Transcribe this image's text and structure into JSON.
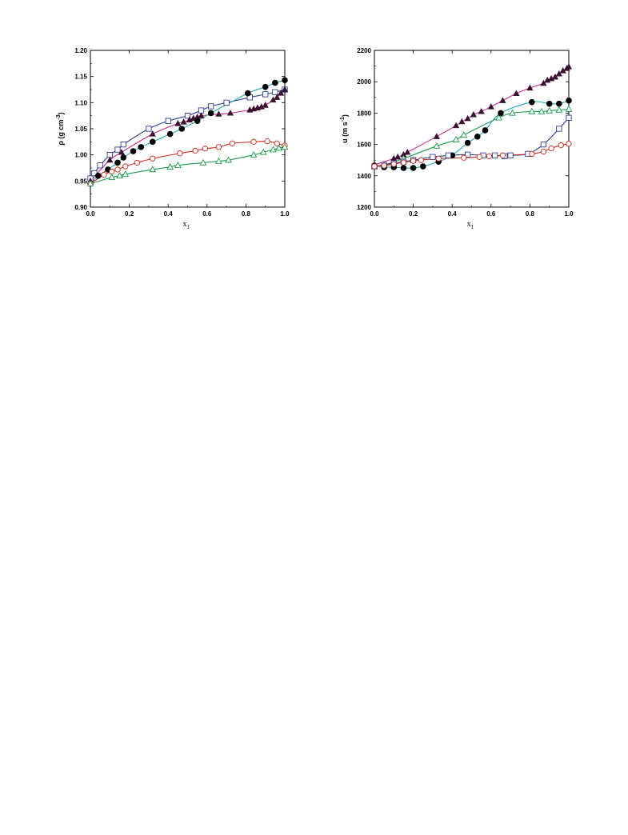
{
  "chart_data": [
    {
      "type": "scatter",
      "title": "",
      "xlabel": "x",
      "xlabel_sub": "1",
      "ylabel": "ρ (g cm",
      "ylabel_sup": "-3",
      "ylabel_end": ")",
      "xlim": [
        0.0,
        1.0
      ],
      "ylim": [
        0.9,
        1.2
      ],
      "xticks": [
        "0.0",
        "0.2",
        "0.4",
        "0.6",
        "0.8",
        "1.0"
      ],
      "yticks": [
        "0.90",
        "0.95",
        "1.00",
        "1.05",
        "1.10",
        "1.15",
        "1.20"
      ],
      "grid": false,
      "series": [
        {
          "marker": "open-square",
          "color": "#2f3f8f",
          "line_color": "#2f3f8f",
          "x": [
            0.0,
            0.02,
            0.05,
            0.1,
            0.14,
            0.17,
            0.3,
            0.4,
            0.5,
            0.57,
            0.62,
            0.7,
            0.82,
            0.9,
            0.95,
            1.0
          ],
          "y": [
            0.955,
            0.965,
            0.98,
            1.0,
            1.01,
            1.02,
            1.05,
            1.065,
            1.075,
            1.085,
            1.093,
            1.1,
            1.11,
            1.116,
            1.12,
            1.125
          ]
        },
        {
          "marker": "filled-triangle",
          "color": "#3a1030",
          "line_color": "#cc2a8a",
          "x": [
            0.0,
            0.1,
            0.16,
            0.32,
            0.45,
            0.48,
            0.51,
            0.53,
            0.55,
            0.57,
            0.66,
            0.72,
            0.82,
            0.84,
            0.86,
            0.88,
            0.9,
            0.94,
            0.96,
            0.98,
            1.0
          ],
          "y": [
            0.95,
            0.99,
            1.005,
            1.04,
            1.06,
            1.063,
            1.067,
            1.07,
            1.072,
            1.075,
            1.078,
            1.08,
            1.086,
            1.088,
            1.09,
            1.092,
            1.095,
            1.105,
            1.11,
            1.118,
            1.125
          ]
        },
        {
          "marker": "filled-circle",
          "color": "#000000",
          "line_color": "#22a8b5",
          "x": [
            0.0,
            0.04,
            0.09,
            0.14,
            0.17,
            0.22,
            0.26,
            0.32,
            0.41,
            0.47,
            0.55,
            0.62,
            0.81,
            0.9,
            0.95,
            1.0
          ],
          "y": [
            0.945,
            0.96,
            0.972,
            0.985,
            0.995,
            1.007,
            1.015,
            1.025,
            1.04,
            1.05,
            1.065,
            1.08,
            1.118,
            1.13,
            1.138,
            1.143
          ]
        },
        {
          "marker": "open-circle",
          "color": "#cc2a1a",
          "line_color": "#cc2a1a",
          "x": [
            0.0,
            0.07,
            0.11,
            0.14,
            0.18,
            0.24,
            0.32,
            0.46,
            0.54,
            0.59,
            0.66,
            0.73,
            0.84,
            0.91,
            0.96,
            1.0
          ],
          "y": [
            0.945,
            0.962,
            0.968,
            0.972,
            0.978,
            0.985,
            0.993,
            1.003,
            1.008,
            1.012,
            1.015,
            1.022,
            1.025,
            1.026,
            1.022,
            1.018
          ]
        },
        {
          "marker": "open-triangle",
          "color": "#1e9a4a",
          "line_color": "#1e9a4a",
          "x": [
            0.0,
            0.11,
            0.15,
            0.18,
            0.32,
            0.41,
            0.45,
            0.58,
            0.66,
            0.71,
            0.84,
            0.89,
            0.94,
            0.97,
            1.0
          ],
          "y": [
            0.945,
            0.957,
            0.96,
            0.963,
            0.972,
            0.977,
            0.98,
            0.985,
            0.988,
            0.99,
            1.0,
            1.005,
            1.01,
            1.013,
            1.015
          ]
        }
      ]
    },
    {
      "type": "scatter",
      "title": "",
      "xlabel": "x",
      "xlabel_sub": "1",
      "ylabel": "u (m s",
      "ylabel_sup": "-1",
      "ylabel_end": ")",
      "xlim": [
        0.0,
        1.0
      ],
      "ylim": [
        1200,
        2200
      ],
      "xticks": [
        "0.0",
        "0.2",
        "0.4",
        "0.6",
        "0.8",
        "1.0"
      ],
      "yticks": [
        "1200",
        "1400",
        "1600",
        "1800",
        "2000",
        "2200"
      ],
      "grid": false,
      "series": [
        {
          "marker": "filled-triangle",
          "color": "#3a1030",
          "line_color": "#cc2a8a",
          "x": [
            0.0,
            0.1,
            0.12,
            0.15,
            0.17,
            0.32,
            0.42,
            0.45,
            0.48,
            0.51,
            0.55,
            0.6,
            0.66,
            0.73,
            0.8,
            0.87,
            0.89,
            0.91,
            0.93,
            0.95,
            0.97,
            0.99,
            1.0
          ],
          "y": [
            1470,
            1510,
            1520,
            1535,
            1550,
            1650,
            1720,
            1745,
            1765,
            1790,
            1810,
            1840,
            1880,
            1925,
            1960,
            1990,
            2010,
            2020,
            2030,
            2050,
            2070,
            2085,
            2095
          ]
        },
        {
          "marker": "open-triangle",
          "color": "#1e9a4a",
          "line_color": "#1e9a4a",
          "x": [
            0.0,
            0.05,
            0.15,
            0.32,
            0.42,
            0.46,
            0.64,
            0.71,
            0.81,
            0.86,
            0.9,
            0.95,
            1.0
          ],
          "y": [
            1460,
            1470,
            1510,
            1590,
            1630,
            1660,
            1770,
            1800,
            1810,
            1810,
            1815,
            1820,
            1825
          ]
        },
        {
          "marker": "filled-circle",
          "color": "#000000",
          "line_color": "#22a8b5",
          "x": [
            0.0,
            0.05,
            0.1,
            0.15,
            0.2,
            0.25,
            0.33,
            0.4,
            0.48,
            0.53,
            0.57,
            0.65,
            0.81,
            0.9,
            0.95,
            1.0
          ],
          "y": [
            1465,
            1455,
            1455,
            1450,
            1450,
            1460,
            1490,
            1530,
            1610,
            1650,
            1690,
            1800,
            1870,
            1860,
            1860,
            1880
          ]
        },
        {
          "marker": "open-square",
          "color": "#2f3f8f",
          "line_color": "#2f3f8f",
          "x": [
            0.0,
            0.05,
            0.1,
            0.15,
            0.2,
            0.3,
            0.38,
            0.48,
            0.56,
            0.62,
            0.67,
            0.7,
            0.79,
            0.87,
            0.95,
            1.0
          ],
          "y": [
            1460,
            1470,
            1480,
            1490,
            1500,
            1520,
            1530,
            1535,
            1530,
            1530,
            1525,
            1530,
            1540,
            1600,
            1700,
            1770
          ]
        },
        {
          "marker": "open-circle",
          "color": "#cc2a1a",
          "line_color": "#cc2a1a",
          "x": [
            0.0,
            0.05,
            0.1,
            0.15,
            0.2,
            0.24,
            0.33,
            0.46,
            0.54,
            0.59,
            0.66,
            0.81,
            0.87,
            0.91,
            0.96,
            1.0
          ],
          "y": [
            1460,
            1465,
            1475,
            1485,
            1495,
            1500,
            1510,
            1515,
            1520,
            1525,
            1530,
            1540,
            1555,
            1575,
            1595,
            1605
          ]
        }
      ]
    }
  ]
}
